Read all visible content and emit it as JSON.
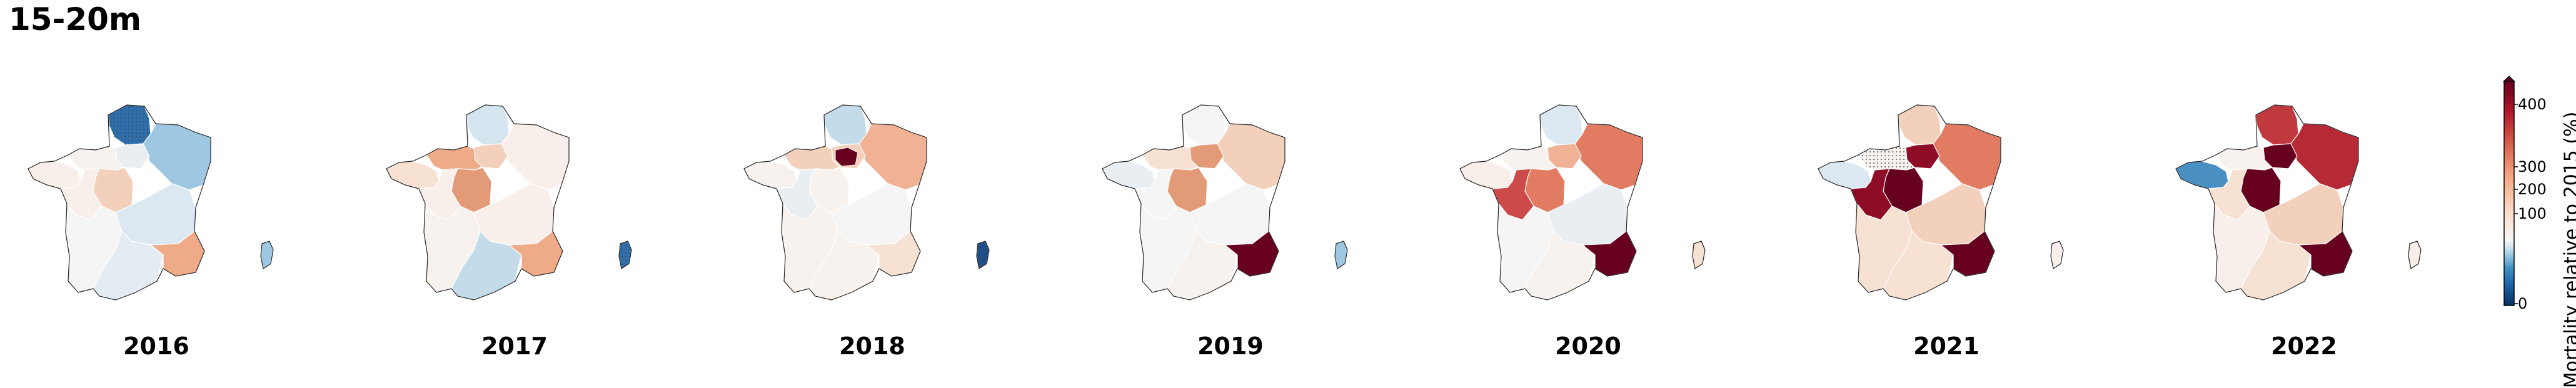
{
  "title": "15-20m",
  "colorbar": {
    "label": "Mortality relative to 2015 (%)",
    "ticks": [
      "0",
      "100",
      "200",
      "300",
      "400"
    ],
    "colormap": "RdBu_r",
    "extend": "max"
  },
  "years": [
    {
      "label": "2016",
      "fills": [
        "#f8efea",
        "#f7f2ee",
        "#2f6fae",
        "#9ec8e2",
        "#e9eef2",
        "#f3d0bb",
        "#f8efea",
        "#f5f5f5",
        "#dbe8f1",
        "#e4ecf3",
        "#efaa88",
        "#9ec8e2"
      ],
      "hatched": [
        2
      ]
    },
    {
      "label": "2017",
      "fills": [
        "#f6e1d3",
        "#efaa88",
        "#d5e5f0",
        "#f8efea",
        "#f3d0bb",
        "#e39a77",
        "#f8efea",
        "#f7f2ee",
        "#f8efea",
        "#c4dbea",
        "#efaa88",
        "#2f6fae"
      ],
      "hatched": [
        11
      ]
    },
    {
      "label": "2018",
      "fills": [
        "#f7f2ee",
        "#f3d0bb",
        "#c4dbea",
        "#f0b194",
        "#f3d0bb",
        "#f7f2ee",
        "#e9eef2",
        "#f7f2ee",
        "#f5f5f5",
        "#f7f2ee",
        "#f6e1d3",
        "#1f4e8c"
      ],
      "hatched": [
        11
      ],
      "darkCentre": true
    },
    {
      "label": "2019",
      "fills": [
        "#e9eef2",
        "#f6e1d3",
        "#f5f5f5",
        "#f3d0bb",
        "#e39a77",
        "#e39a77",
        "#f5f5f5",
        "#f5f5f5",
        "#f5f5f5",
        "#f7f2ee",
        "#67001f",
        "#9ec8e2"
      ],
      "hatched": []
    },
    {
      "label": "2020",
      "fills": [
        "#f8efea",
        "#f7f2ee",
        "#dbe8f1",
        "#e17c63",
        "#f0b194",
        "#e17c63",
        "#cd4a4a",
        "#f5f5f5",
        "#e9eef2",
        "#f7f2ee",
        "#67001f",
        "#f6e1d3"
      ],
      "hatched": []
    },
    {
      "label": "2021",
      "fills": [
        "#dbe8f1",
        "#f7f2ee",
        "#f3d0bb",
        "#e17c63",
        "#8e0c25",
        "#67001f",
        "#8e0c25",
        "#f6e1d3",
        "#f3d0bb",
        "#f6e1d3",
        "#67001f",
        "#f8efea"
      ],
      "hatched": [
        1
      ]
    },
    {
      "label": "2022",
      "fills": [
        "#4a8fc2",
        "#f7f2ee",
        "#c0393f",
        "#b52a35",
        "#67001f",
        "#67001f",
        "#f6e1d3",
        "#f8efea",
        "#f3d0bb",
        "#f6e1d3",
        "#67001f",
        "#f8efea"
      ],
      "hatched": []
    }
  ]
}
